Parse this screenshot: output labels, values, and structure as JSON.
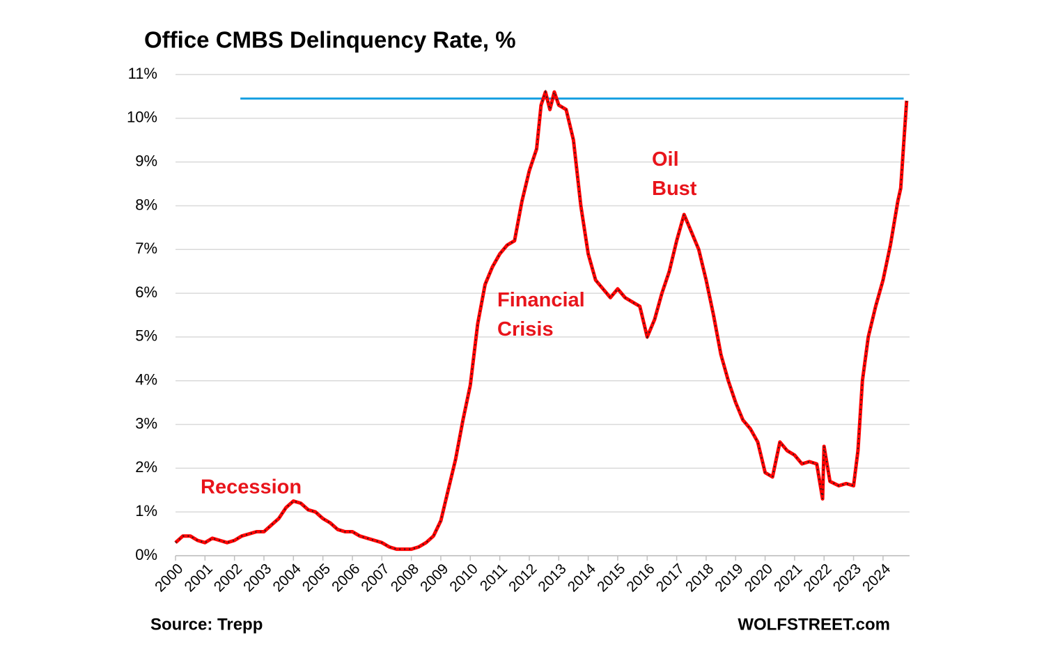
{
  "chart_data": {
    "type": "line",
    "title": "Office CMBS Delinquency Rate, %",
    "source": "Source: Trepp",
    "watermark": "WOLFSTREET.com",
    "annotations": [
      "Recession",
      "Financial Crisis",
      "Oil Bust"
    ],
    "xlim": [
      2000,
      2024.9
    ],
    "xticks": [
      2000,
      2001,
      2002,
      2003,
      2004,
      2005,
      2006,
      2007,
      2008,
      2009,
      2010,
      2011,
      2012,
      2013,
      2014,
      2015,
      2016,
      2017,
      2018,
      2019,
      2020,
      2021,
      2022,
      2023,
      2024
    ],
    "ylim": [
      0,
      11
    ],
    "yticks": [
      {
        "value": 0,
        "label": "0%"
      },
      {
        "value": 1,
        "label": "1%"
      },
      {
        "value": 2,
        "label": "2%"
      },
      {
        "value": 3,
        "label": "3%"
      },
      {
        "value": 4,
        "label": "4%"
      },
      {
        "value": 5,
        "label": "5%"
      },
      {
        "value": 6,
        "label": "6%"
      },
      {
        "value": 7,
        "label": "7%"
      },
      {
        "value": 8,
        "label": "8%"
      },
      {
        "value": 9,
        "label": "9%"
      },
      {
        "value": 10,
        "label": "10%"
      },
      {
        "value": 11,
        "label": "11%"
      }
    ],
    "grid": true,
    "reference_line": {
      "value": 10.45,
      "x": [
        2002.2,
        2024.7
      ],
      "color": "#1ba1e2"
    },
    "color": "#ff0000",
    "marker_color": "#222222",
    "x": [
      2000,
      2000.25,
      2000.5,
      2000.75,
      2001,
      2001.25,
      2001.5,
      2001.75,
      2002,
      2002.25,
      2002.5,
      2002.75,
      2003,
      2003.25,
      2003.5,
      2003.75,
      2004,
      2004.25,
      2004.5,
      2004.75,
      2005,
      2005.25,
      2005.5,
      2005.75,
      2006,
      2006.25,
      2006.5,
      2006.75,
      2007,
      2007.25,
      2007.5,
      2007.75,
      2008,
      2008.25,
      2008.5,
      2008.75,
      2009,
      2009.25,
      2009.5,
      2009.75,
      2010,
      2010.25,
      2010.5,
      2010.75,
      2011,
      2011.25,
      2011.5,
      2011.75,
      2012,
      2012.25,
      2012.4,
      2012.55,
      2012.7,
      2012.85,
      2013,
      2013.25,
      2013.5,
      2013.75,
      2014,
      2014.25,
      2014.5,
      2014.75,
      2015,
      2015.25,
      2015.5,
      2015.75,
      2016,
      2016.25,
      2016.5,
      2016.75,
      2017,
      2017.25,
      2017.5,
      2017.75,
      2018,
      2018.25,
      2018.5,
      2018.75,
      2019,
      2019.25,
      2019.5,
      2019.75,
      2020,
      2020.25,
      2020.5,
      2020.75,
      2021,
      2021.25,
      2021.5,
      2021.75,
      2021.95,
      2022,
      2022.2,
      2022.5,
      2022.75,
      2023,
      2023.15,
      2023.3,
      2023.5,
      2023.75,
      2024,
      2024.25,
      2024.5,
      2024.6,
      2024.7,
      2024.8
    ],
    "values": [
      0.3,
      0.45,
      0.45,
      0.35,
      0.3,
      0.4,
      0.35,
      0.3,
      0.35,
      0.45,
      0.5,
      0.55,
      0.55,
      0.7,
      0.85,
      1.1,
      1.25,
      1.2,
      1.05,
      1.0,
      0.85,
      0.75,
      0.6,
      0.55,
      0.55,
      0.45,
      0.4,
      0.35,
      0.3,
      0.2,
      0.15,
      0.15,
      0.15,
      0.2,
      0.3,
      0.45,
      0.8,
      1.5,
      2.2,
      3.1,
      3.9,
      5.3,
      6.2,
      6.6,
      6.9,
      7.1,
      7.2,
      8.1,
      8.8,
      9.3,
      10.3,
      10.6,
      10.2,
      10.6,
      10.3,
      10.2,
      9.5,
      8.0,
      6.9,
      6.3,
      6.1,
      5.9,
      6.1,
      5.9,
      5.8,
      5.7,
      5.0,
      5.4,
      6.0,
      6.5,
      7.2,
      7.8,
      7.4,
      7.0,
      6.3,
      5.5,
      4.6,
      4.0,
      3.5,
      3.1,
      2.9,
      2.6,
      1.9,
      1.8,
      2.6,
      2.4,
      2.3,
      2.1,
      2.15,
      2.1,
      1.3,
      2.5,
      1.7,
      1.6,
      1.65,
      1.6,
      2.4,
      4.0,
      5.0,
      5.7,
      6.3,
      7.1,
      8.1,
      8.4,
      9.4,
      10.4
    ]
  }
}
